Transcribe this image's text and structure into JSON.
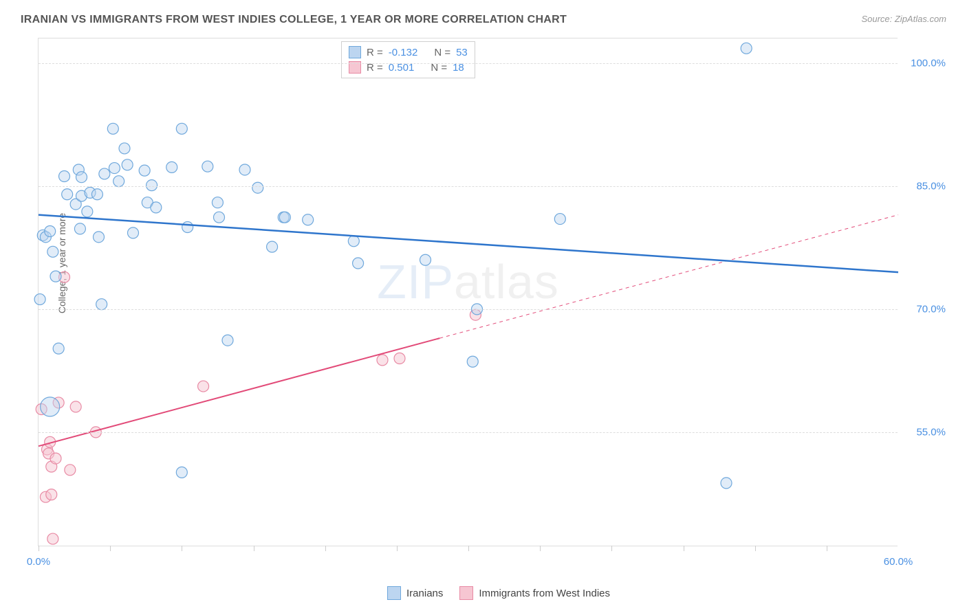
{
  "header": {
    "title": "IRANIAN VS IMMIGRANTS FROM WEST INDIES COLLEGE, 1 YEAR OR MORE CORRELATION CHART",
    "source": "Source: ZipAtlas.com"
  },
  "watermark": {
    "zip": "ZIP",
    "atlas": "atlas"
  },
  "chart": {
    "type": "scatter",
    "y_label": "College, 1 year or more",
    "xlim": [
      0,
      60
    ],
    "ylim": [
      41,
      103
    ],
    "y_gridlines": [
      55.0,
      70.0,
      85.0,
      100.0
    ],
    "y_tick_labels": [
      "55.0%",
      "70.0%",
      "85.0%",
      "100.0%"
    ],
    "x_ticks": [
      0,
      5,
      10,
      15,
      20,
      25,
      30,
      35,
      40,
      45,
      50,
      55
    ],
    "x_tick_labels": {
      "0": "0.0%",
      "60": "60.0%"
    },
    "background_color": "#ffffff",
    "grid_color": "#dddddd",
    "axis_label_color": "#4a90e2",
    "point_radius": 8,
    "point_radius_large": 14,
    "series": {
      "iranians": {
        "label": "Iranians",
        "color_fill": "#bcd5f0",
        "color_stroke": "#6fa8dc",
        "fill_opacity": 0.45,
        "trend": {
          "x1": 0,
          "y1": 81.5,
          "x2": 60,
          "y2": 74.5,
          "color": "#2e75cc",
          "width": 2.5,
          "solid_until_x": 60
        },
        "R": "-0.132",
        "N": "53",
        "points": [
          [
            0.1,
            71.2
          ],
          [
            0.3,
            79.0
          ],
          [
            0.5,
            78.8
          ],
          [
            0.8,
            79.5
          ],
          [
            0.8,
            58.1,
            "large"
          ],
          [
            1.0,
            77.0
          ],
          [
            1.2,
            74.0
          ],
          [
            1.4,
            65.2
          ],
          [
            1.8,
            86.2
          ],
          [
            2.0,
            84.0
          ],
          [
            2.6,
            82.8
          ],
          [
            2.8,
            87.0
          ],
          [
            3.0,
            83.8
          ],
          [
            2.9,
            79.8
          ],
          [
            3.4,
            81.9
          ],
          [
            3.0,
            86.1
          ],
          [
            3.6,
            84.2
          ],
          [
            4.1,
            84.0
          ],
          [
            4.2,
            78.8
          ],
          [
            4.4,
            70.6
          ],
          [
            4.6,
            86.5
          ],
          [
            5.2,
            92.0
          ],
          [
            5.3,
            87.2
          ],
          [
            5.6,
            85.6
          ],
          [
            6.2,
            87.6
          ],
          [
            6.0,
            89.6
          ],
          [
            6.6,
            79.3
          ],
          [
            7.4,
            86.9
          ],
          [
            7.6,
            83.0
          ],
          [
            7.9,
            85.1
          ],
          [
            8.2,
            82.4
          ],
          [
            9.3,
            87.3
          ],
          [
            10.0,
            92.0
          ],
          [
            10.4,
            80.0
          ],
          [
            10.0,
            50.1
          ],
          [
            11.8,
            87.4
          ],
          [
            12.5,
            83.0
          ],
          [
            12.6,
            81.2
          ],
          [
            13.2,
            66.2
          ],
          [
            14.4,
            87.0
          ],
          [
            15.3,
            84.8
          ],
          [
            16.3,
            77.6
          ],
          [
            17.1,
            81.2
          ],
          [
            17.2,
            81.2
          ],
          [
            18.8,
            80.9
          ],
          [
            22.0,
            78.3
          ],
          [
            22.3,
            75.6
          ],
          [
            27.0,
            76.0
          ],
          [
            30.3,
            63.6
          ],
          [
            30.6,
            70.0
          ],
          [
            36.4,
            81.0
          ],
          [
            48.0,
            48.8
          ],
          [
            49.4,
            101.8
          ]
        ]
      },
      "west_indies": {
        "label": "Immigrants from West Indies",
        "color_fill": "#f6c6d2",
        "color_stroke": "#e88aa4",
        "fill_opacity": 0.5,
        "trend": {
          "x1": 0,
          "y1": 53.3,
          "x2": 60,
          "y2": 81.5,
          "color": "#e24a78",
          "width": 2,
          "solid_until_x": 28
        },
        "R": "0.501",
        "N": "18",
        "points": [
          [
            0.2,
            57.8
          ],
          [
            0.5,
            47.1
          ],
          [
            0.6,
            52.9
          ],
          [
            0.7,
            52.4
          ],
          [
            0.8,
            53.8
          ],
          [
            0.9,
            50.8
          ],
          [
            0.9,
            47.4
          ],
          [
            1.0,
            42.0
          ],
          [
            1.2,
            51.8
          ],
          [
            1.4,
            58.6
          ],
          [
            1.8,
            73.9
          ],
          [
            2.2,
            50.4
          ],
          [
            2.6,
            58.1
          ],
          [
            4.0,
            55.0
          ],
          [
            11.5,
            60.6
          ],
          [
            24.0,
            63.8
          ],
          [
            25.2,
            64.0
          ],
          [
            30.5,
            69.3
          ]
        ]
      }
    },
    "stats_box_labels": {
      "R": "R =",
      "N": "N ="
    }
  },
  "bottom_legend": {
    "iranians": "Iranians",
    "west_indies": "Immigrants from West Indies"
  }
}
